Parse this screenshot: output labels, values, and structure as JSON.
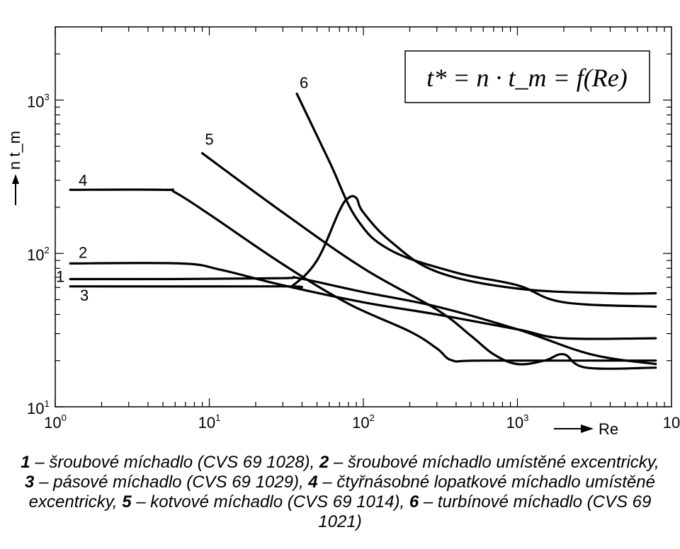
{
  "chart_data": {
    "type": "line",
    "x_scale": "log",
    "y_scale": "log",
    "xlim": [
      1,
      10000
    ],
    "ylim": [
      10,
      3000
    ],
    "xlabel": "Re",
    "ylabel": "n t_m",
    "formula": "t* = n · t_m = f(Re)",
    "x_tick_labels": [
      {
        "value": 1,
        "label": "10",
        "exp": "0"
      },
      {
        "value": 10,
        "label": "10",
        "exp": "1"
      },
      {
        "value": 100,
        "label": "10",
        "exp": "2"
      },
      {
        "value": 1000,
        "label": "10",
        "exp": "3"
      },
      {
        "value": 10000,
        "label": "10",
        "exp": ""
      }
    ],
    "y_tick_labels": [
      {
        "value": 10,
        "label": "10",
        "exp": "1"
      },
      {
        "value": 100,
        "label": "10",
        "exp": "2"
      },
      {
        "value": 1000,
        "label": "10",
        "exp": "3"
      }
    ],
    "series": [
      {
        "name": "1",
        "points": [
          [
            1.25,
            68
          ],
          [
            5,
            68
          ],
          [
            30,
            69
          ],
          [
            38,
            69
          ],
          [
            100,
            56
          ],
          [
            300,
            45
          ],
          [
            1000,
            32
          ],
          [
            3000,
            22
          ],
          [
            7900,
            19
          ]
        ]
      },
      {
        "name": "2",
        "points": [
          [
            1.25,
            86
          ],
          [
            6.5,
            86
          ],
          [
            12,
            78
          ],
          [
            30,
            62
          ],
          [
            100,
            48
          ],
          [
            300,
            40
          ],
          [
            1000,
            32
          ],
          [
            2000,
            28
          ],
          [
            7900,
            28
          ]
        ]
      },
      {
        "name": "3",
        "points": [
          [
            1.25,
            61
          ],
          [
            30,
            61
          ],
          [
            35,
            62
          ],
          [
            50,
            90
          ],
          [
            70,
            190
          ],
          [
            80,
            230
          ],
          [
            90,
            230
          ],
          [
            100,
            185
          ],
          [
            150,
            120
          ],
          [
            300,
            76
          ],
          [
            1000,
            59
          ],
          [
            4000,
            55
          ],
          [
            7900,
            55
          ]
        ]
      },
      {
        "name": "4",
        "points": [
          [
            1.25,
            260
          ],
          [
            5,
            260
          ],
          [
            6,
            250
          ],
          [
            10,
            180
          ],
          [
            30,
            85
          ],
          [
            80,
            47
          ],
          [
            200,
            31
          ],
          [
            300,
            24
          ],
          [
            380,
            20
          ],
          [
            600,
            20
          ],
          [
            7900,
            20
          ]
        ]
      },
      {
        "name": "5",
        "points": [
          [
            9,
            450
          ],
          [
            30,
            185
          ],
          [
            100,
            80
          ],
          [
            300,
            43
          ],
          [
            500,
            29
          ],
          [
            700,
            22
          ],
          [
            1000,
            19
          ],
          [
            1500,
            20
          ],
          [
            2000,
            22
          ],
          [
            2800,
            18
          ],
          [
            7900,
            18
          ]
        ]
      },
      {
        "name": "6",
        "points": [
          [
            37,
            1100
          ],
          [
            60,
            400
          ],
          [
            90,
            170
          ],
          [
            150,
            105
          ],
          [
            400,
            75
          ],
          [
            1000,
            62
          ],
          [
            2000,
            48
          ],
          [
            7900,
            45
          ]
        ]
      }
    ],
    "grid": false,
    "legend": "labels-on-curves"
  },
  "caption": [
    {
      "num": "1",
      "text": " – šroubové míchadlo (CVS 69 1028), "
    },
    {
      "num": "2",
      "text": " – šroubové míchadlo umístěné excentricky,"
    },
    {
      "br": true
    },
    {
      "num": "3",
      "text": " – pásové míchadlo (CVS 69 1029), "
    },
    {
      "num": "4",
      "text": " – čtyřnásobné lopatkové míchadlo umístěné"
    },
    {
      "br": true
    },
    {
      "num": "",
      "text": "excentricky, "
    },
    {
      "num": "5",
      "text": " – kotvové míchadlo (CVS 69 1014), "
    },
    {
      "num": "6",
      "text": " – turbínové míchadlo (CVS 69"
    },
    {
      "br": true
    },
    {
      "num": "",
      "text": "1021)"
    }
  ]
}
